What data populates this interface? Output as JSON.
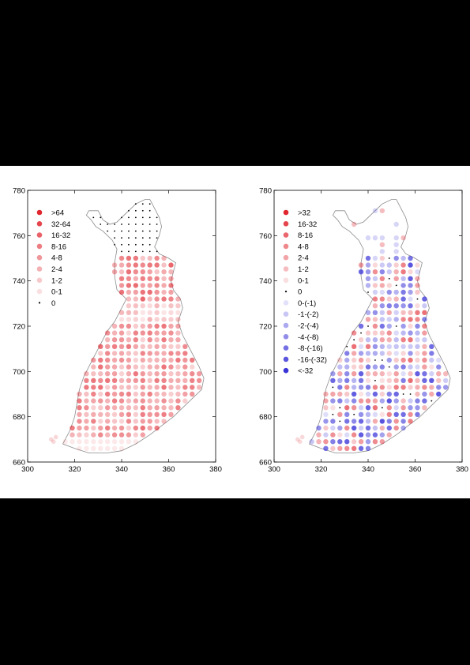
{
  "chart_data": [
    {
      "type": "scatter",
      "title": "",
      "xlabel": "",
      "ylabel": "",
      "xlim": [
        300,
        380
      ],
      "ylim": [
        660,
        780
      ],
      "xticks": [
        "300",
        "320",
        "340",
        "360",
        "380"
      ],
      "yticks": [
        "660",
        "680",
        "700",
        "720",
        "740",
        "760",
        "780"
      ],
      "legend_position": "top-left",
      "legend": [
        {
          "label": ">64",
          "color": "#e0262f",
          "opacity": 1.0
        },
        {
          "label": "32-64",
          "color": "#e0262f",
          "opacity": 0.85
        },
        {
          "label": "16-32",
          "color": "#e0262f",
          "opacity": 0.72
        },
        {
          "label": "8-16",
          "color": "#e0262f",
          "opacity": 0.6
        },
        {
          "label": "4-8",
          "color": "#e0262f",
          "opacity": 0.48
        },
        {
          "label": "2-4",
          "color": "#e0262f",
          "opacity": 0.36
        },
        {
          "label": "1-2",
          "color": "#e0262f",
          "opacity": 0.25
        },
        {
          "label": "0-1",
          "color": "#e0262f",
          "opacity": 0.15
        },
        {
          "label": "0",
          "color": "#000000",
          "opacity": 1.0,
          "dot": true
        }
      ],
      "grid_points": "2 km spaced cells across Finland; darkest reds in southern and central-east regions, dots only in far north",
      "class_rule": "south dense reds (2-16), central band 740 high values (4-16), northern lapland sparse 0 dots"
    },
    {
      "type": "scatter",
      "title": "",
      "xlabel": "",
      "ylabel": "",
      "xlim": [
        300,
        380
      ],
      "ylim": [
        660,
        780
      ],
      "xticks": [
        "300",
        "320",
        "340",
        "360",
        "380"
      ],
      "yticks": [
        "660",
        "680",
        "700",
        "720",
        "740",
        "760",
        "780"
      ],
      "legend_position": "top-left",
      "legend": [
        {
          "label": ">32",
          "color": "#e0262f",
          "opacity": 1.0
        },
        {
          "label": "16-32",
          "color": "#e0262f",
          "opacity": 0.85
        },
        {
          "label": "8-16",
          "color": "#e0262f",
          "opacity": 0.7
        },
        {
          "label": "4-8",
          "color": "#e0262f",
          "opacity": 0.55
        },
        {
          "label": "2-4",
          "color": "#e0262f",
          "opacity": 0.42
        },
        {
          "label": "1-2",
          "color": "#e0262f",
          "opacity": 0.3
        },
        {
          "label": "0-1",
          "color": "#e0262f",
          "opacity": 0.15
        },
        {
          "label": "0",
          "color": "#000000",
          "opacity": 1.0,
          "dot": true
        },
        {
          "label": "0-(-1)",
          "color": "#3a34d8",
          "opacity": 0.15
        },
        {
          "label": "-1-(-2)",
          "color": "#3a34d8",
          "opacity": 0.28
        },
        {
          "label": "-2-(-4)",
          "color": "#3a34d8",
          "opacity": 0.42
        },
        {
          "label": "-4-(-8)",
          "color": "#3a34d8",
          "opacity": 0.56
        },
        {
          "label": "-8-(-16)",
          "color": "#3a34d8",
          "opacity": 0.7
        },
        {
          "label": "-16-(-32)",
          "color": "#3a34d8",
          "opacity": 0.84
        },
        {
          "label": "<-32",
          "color": "#3a34d8",
          "opacity": 1.0
        }
      ],
      "class_rule": "mixed blues and reds; central 730-750 strong blues on west, reds east; south mixed blue/red"
    }
  ]
}
